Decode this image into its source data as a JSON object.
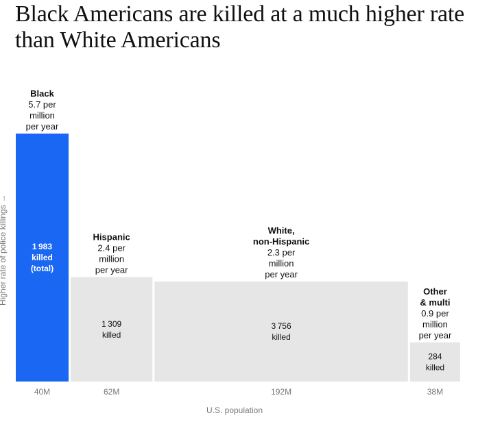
{
  "title": "Black Americans are killed at a much higher rate than White Americans",
  "chart_data": {
    "type": "bar",
    "subtype": "variable-width (mosaic)",
    "xlabel": "U.S. population",
    "ylabel": "Higher rate of police killings →",
    "ylim": [
      0,
      5.7
    ],
    "series": [
      {
        "name": "Black",
        "name_lines": [
          "Black"
        ],
        "rate": 5.7,
        "rate_lines": [
          "5.7 per",
          "million",
          "per year"
        ],
        "population_millions": 40,
        "population_label": "40M",
        "killed": 1983,
        "killed_lines": [
          "1 983",
          "killed",
          "(total)"
        ],
        "color": "#1967f2",
        "label_color": "#ffffff"
      },
      {
        "name": "Hispanic",
        "name_lines": [
          "Hispanic"
        ],
        "rate": 2.4,
        "rate_lines": [
          "2.4 per",
          "million",
          "per year"
        ],
        "population_millions": 62,
        "population_label": "62M",
        "killed": 1309,
        "killed_lines": [
          "1 309",
          "killed"
        ],
        "color": "#e6e6e6",
        "label_color": "#111111"
      },
      {
        "name": "White, non-Hispanic",
        "name_lines": [
          "White,",
          "non-Hispanic"
        ],
        "rate": 2.3,
        "rate_lines": [
          "2.3 per",
          "million",
          "per year"
        ],
        "population_millions": 192,
        "population_label": "192M",
        "killed": 3756,
        "killed_lines": [
          "3 756",
          "killed"
        ],
        "color": "#e6e6e6",
        "label_color": "#111111"
      },
      {
        "name": "Other & multi",
        "name_lines": [
          "Other",
          "& multi"
        ],
        "rate": 0.9,
        "rate_lines": [
          "0.9 per",
          "million",
          "per year"
        ],
        "population_millions": 38,
        "population_label": "38M",
        "killed": 284,
        "killed_lines": [
          "284",
          "killed"
        ],
        "color": "#e6e6e6",
        "label_color": "#111111"
      }
    ]
  }
}
